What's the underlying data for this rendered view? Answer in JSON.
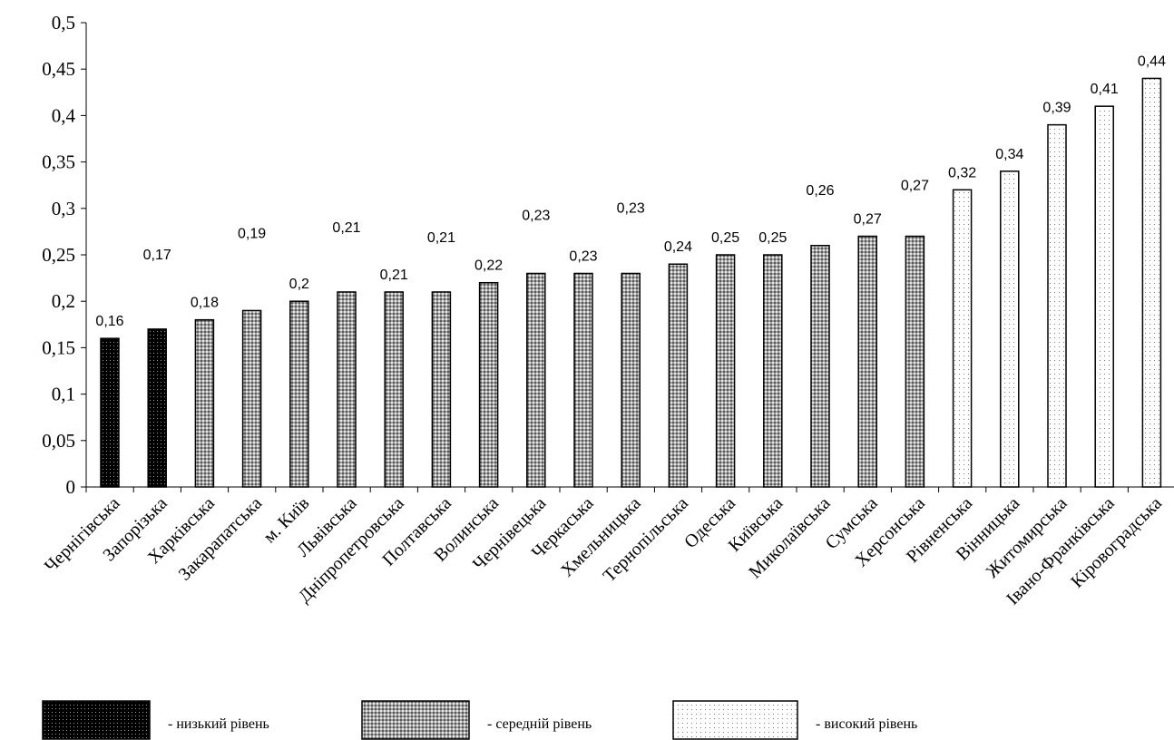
{
  "chart_data": {
    "type": "bar",
    "title": "",
    "xlabel": "",
    "ylabel": "",
    "ylim": [
      0,
      0.5
    ],
    "yticks": [
      "0",
      "0,05",
      "0,1",
      "0,15",
      "0,2",
      "0,25",
      "0,3",
      "0,35",
      "0,4",
      "0,45",
      "0,5"
    ],
    "grid": false,
    "categories": [
      "Чернігівська",
      "Запорізька",
      "Харківська",
      "Закарапатська",
      "м. Київ",
      "Львівська",
      "Дніпропетровська",
      "Полтавська",
      "Волинська",
      "Чернівецька",
      "Черкаська",
      "Хмельницька",
      "Тернопільська",
      "Одеська",
      "Київська",
      "Миколаївська",
      "Сумська",
      "Херсонська",
      "Рівненська",
      "Вінницька",
      "Житомирська",
      "Івано-Франківська",
      "Кіровоградська"
    ],
    "values": [
      0.16,
      0.17,
      0.18,
      0.19,
      0.2,
      0.21,
      0.21,
      0.21,
      0.22,
      0.23,
      0.23,
      0.23,
      0.24,
      0.25,
      0.25,
      0.26,
      0.27,
      0.27,
      0.32,
      0.34,
      0.39,
      0.41,
      0.44
    ],
    "value_labels": [
      "0,16",
      "0,17",
      "0,18",
      "0,19",
      "0,2",
      "0,21",
      "0,21",
      "0,21",
      "0,22",
      "0,23",
      "0,23",
      "0,23",
      "0,24",
      "0,25",
      "0,25",
      "0,26",
      "0,27",
      "0,27",
      "0,32",
      "0,34",
      "0,39",
      "0,41",
      "0,44"
    ],
    "levels": [
      "low",
      "low",
      "medium",
      "medium",
      "medium",
      "medium",
      "medium",
      "medium",
      "medium",
      "medium",
      "medium",
      "medium",
      "medium",
      "medium",
      "medium",
      "medium",
      "medium",
      "medium",
      "high",
      "high",
      "high",
      "high",
      "high"
    ],
    "legend": {
      "placement": "bottom",
      "items": [
        {
          "key": "low",
          "label": "- низький рівень",
          "pattern": "dense-dark-dots"
        },
        {
          "key": "medium",
          "label": "- середній рівень",
          "pattern": "grey-diamonds"
        },
        {
          "key": "high",
          "label": "- високий рівень",
          "pattern": "sparse-light-dots"
        }
      ]
    },
    "colors": {
      "low": "#000000",
      "medium": "#8c8c8c",
      "high": "#ffffff"
    }
  }
}
